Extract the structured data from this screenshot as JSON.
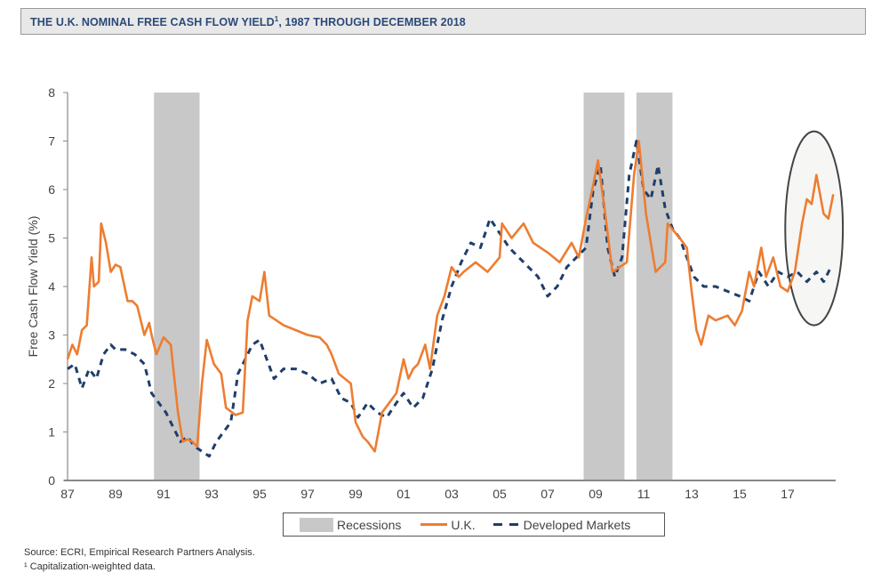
{
  "title": {
    "main": "THE U.K. NOMINAL FREE CASH FLOW YIELD",
    "superscript": "1",
    "suffix": ", 1987 THROUGH DECEMBER 2018"
  },
  "footnotes": {
    "source": "Source: ECRI, Empirical Research Partners Analysis.",
    "note": "¹ Capitalization-weighted data."
  },
  "legend": {
    "recessions": "Recessions",
    "uk": "U.K.",
    "dm": "Developed Markets"
  },
  "colors": {
    "uk": "#ed7d31",
    "dm": "#1f3e6b",
    "recession": "#c8c8c8",
    "title_text": "#2b4a78",
    "highlight_ellipse": "#444444"
  },
  "chart_data": {
    "type": "line",
    "title": "THE U.K. NOMINAL FREE CASH FLOW YIELD¹, 1987 THROUGH DECEMBER 2018",
    "xlabel": "",
    "ylabel": "Free Cash Flow Yield (%)",
    "ylim": [
      0,
      8
    ],
    "xlim": [
      1987,
      2019
    ],
    "yticks": [
      0,
      1,
      2,
      3,
      4,
      5,
      6,
      7,
      8
    ],
    "xticks": [
      1987,
      1989,
      1991,
      1993,
      1995,
      1997,
      1999,
      2001,
      2003,
      2005,
      2007,
      2009,
      2011,
      2013,
      2015,
      2017
    ],
    "xtick_labels": [
      "87",
      "89",
      "91",
      "93",
      "95",
      "97",
      "99",
      "01",
      "03",
      "05",
      "07",
      "09",
      "11",
      "13",
      "15",
      "17"
    ],
    "grid": false,
    "legend_position": "bottom",
    "recessions": [
      [
        1990.6,
        1992.5
      ],
      [
        2008.5,
        2010.2
      ],
      [
        2010.7,
        2012.2
      ]
    ],
    "highlight": {
      "shape": "ellipse",
      "x_range": [
        2016.9,
        2019.3
      ],
      "y_range": [
        3.2,
        7.2
      ],
      "note": "recent U.K. divergence"
    },
    "series": [
      {
        "name": "U.K.",
        "style": "solid",
        "x": [
          1987.0,
          1987.2,
          1987.4,
          1987.6,
          1987.8,
          1988.0,
          1988.1,
          1988.3,
          1988.4,
          1988.6,
          1988.8,
          1989.0,
          1989.2,
          1989.5,
          1989.7,
          1989.9,
          1990.2,
          1990.4,
          1990.5,
          1990.7,
          1991.0,
          1991.3,
          1991.6,
          1991.8,
          1992.0,
          1992.2,
          1992.4,
          1992.6,
          1992.8,
          1993.1,
          1993.4,
          1993.6,
          1994.0,
          1994.3,
          1994.5,
          1994.7,
          1995.0,
          1995.2,
          1995.4,
          1995.7,
          1996.0,
          1996.5,
          1997.0,
          1997.5,
          1997.8,
          1998.0,
          1998.3,
          1998.8,
          1999.0,
          1999.3,
          1999.5,
          1999.8,
          2000.1,
          2000.4,
          2000.7,
          2001.0,
          2001.2,
          2001.4,
          2001.6,
          2001.9,
          2002.1,
          2002.4,
          2002.7,
          2003.0,
          2003.3,
          2003.5,
          2004.0,
          2004.5,
          2005.0,
          2005.1,
          2005.5,
          2006.0,
          2006.4,
          2007.0,
          2007.5,
          2008.0,
          2008.3,
          2008.6,
          2008.9,
          2009.1,
          2009.4,
          2009.7,
          2010.0,
          2010.3,
          2010.6,
          2010.8,
          2011.1,
          2011.5,
          2011.9,
          2012.0,
          2012.5,
          2012.8,
          2013.0,
          2013.2,
          2013.4,
          2013.7,
          2014.0,
          2014.5,
          2014.8,
          2015.1,
          2015.4,
          2015.6,
          2015.9,
          2016.1,
          2016.4,
          2016.7,
          2017.0,
          2017.3,
          2017.6,
          2017.8,
          2018.0,
          2018.2,
          2018.5,
          2018.7,
          2018.9
        ],
        "values": [
          2.5,
          2.8,
          2.6,
          3.1,
          3.2,
          4.6,
          4.0,
          4.1,
          5.3,
          4.9,
          4.3,
          4.45,
          4.4,
          3.7,
          3.7,
          3.6,
          3.0,
          3.25,
          3.0,
          2.6,
          2.95,
          2.8,
          1.4,
          0.8,
          0.85,
          0.8,
          0.7,
          2.0,
          2.9,
          2.4,
          2.2,
          1.5,
          1.35,
          1.4,
          3.3,
          3.8,
          3.7,
          4.3,
          3.4,
          3.3,
          3.2,
          3.1,
          3.0,
          2.95,
          2.8,
          2.6,
          2.2,
          2.0,
          1.2,
          0.9,
          0.8,
          0.6,
          1.4,
          1.6,
          1.8,
          2.5,
          2.1,
          2.3,
          2.4,
          2.8,
          2.3,
          3.4,
          3.8,
          4.4,
          4.2,
          4.3,
          4.5,
          4.3,
          4.6,
          5.3,
          5.0,
          5.3,
          4.9,
          4.7,
          4.5,
          4.9,
          4.6,
          5.4,
          6.1,
          6.6,
          5.5,
          4.3,
          4.4,
          4.5,
          6.3,
          7.0,
          5.5,
          4.3,
          4.5,
          5.3,
          5.0,
          4.8,
          3.9,
          3.1,
          2.8,
          3.4,
          3.3,
          3.4,
          3.2,
          3.5,
          4.3,
          4.0,
          4.8,
          4.2,
          4.6,
          4.0,
          3.9,
          4.3,
          5.3,
          5.8,
          5.7,
          6.3,
          5.5,
          5.4,
          5.9
        ]
      },
      {
        "name": "Developed Markets",
        "style": "dashed",
        "x": [
          1987.0,
          1987.3,
          1987.6,
          1987.9,
          1988.2,
          1988.5,
          1988.8,
          1989.0,
          1989.4,
          1989.8,
          1990.2,
          1990.5,
          1990.8,
          1991.1,
          1991.4,
          1991.7,
          1992.0,
          1992.3,
          1992.6,
          1992.9,
          1993.2,
          1993.5,
          1993.8,
          1994.1,
          1994.4,
          1994.7,
          1995.0,
          1995.3,
          1995.6,
          1996.0,
          1996.5,
          1997.0,
          1997.5,
          1998.0,
          1998.4,
          1998.8,
          1999.1,
          1999.5,
          1999.9,
          2000.3,
          2000.7,
          2001.0,
          2001.4,
          2001.8,
          2002.2,
          2002.6,
          2003.0,
          2003.4,
          2003.8,
          2004.2,
          2004.6,
          2005.0,
          2005.4,
          2005.8,
          2006.2,
          2006.6,
          2007.0,
          2007.4,
          2007.8,
          2008.2,
          2008.6,
          2008.9,
          2009.2,
          2009.5,
          2009.8,
          2010.1,
          2010.4,
          2010.7,
          2011.0,
          2011.3,
          2011.6,
          2011.9,
          2012.2,
          2012.5,
          2012.8,
          2013.1,
          2013.5,
          2014.0,
          2014.5,
          2015.0,
          2015.4,
          2015.8,
          2016.2,
          2016.6,
          2017.0,
          2017.4,
          2017.8,
          2018.2,
          2018.5,
          2018.8
        ],
        "values": [
          2.3,
          2.4,
          1.9,
          2.3,
          2.1,
          2.6,
          2.8,
          2.7,
          2.7,
          2.6,
          2.4,
          1.8,
          1.6,
          1.4,
          1.1,
          0.8,
          0.9,
          0.7,
          0.6,
          0.5,
          0.8,
          1.0,
          1.2,
          2.2,
          2.5,
          2.8,
          2.9,
          2.5,
          2.1,
          2.3,
          2.3,
          2.2,
          2.0,
          2.1,
          1.7,
          1.6,
          1.3,
          1.6,
          1.4,
          1.3,
          1.6,
          1.8,
          1.5,
          1.7,
          2.3,
          3.3,
          4.0,
          4.5,
          4.9,
          4.8,
          5.4,
          5.1,
          4.8,
          4.6,
          4.4,
          4.2,
          3.8,
          4.0,
          4.4,
          4.6,
          4.8,
          6.0,
          6.5,
          4.8,
          4.2,
          4.6,
          6.3,
          7.0,
          6.0,
          5.8,
          6.5,
          5.6,
          5.2,
          5.0,
          4.6,
          4.2,
          4.0,
          4.0,
          3.9,
          3.8,
          3.7,
          4.3,
          4.0,
          4.3,
          4.2,
          4.3,
          4.1,
          4.3,
          4.1,
          4.4
        ]
      }
    ]
  }
}
